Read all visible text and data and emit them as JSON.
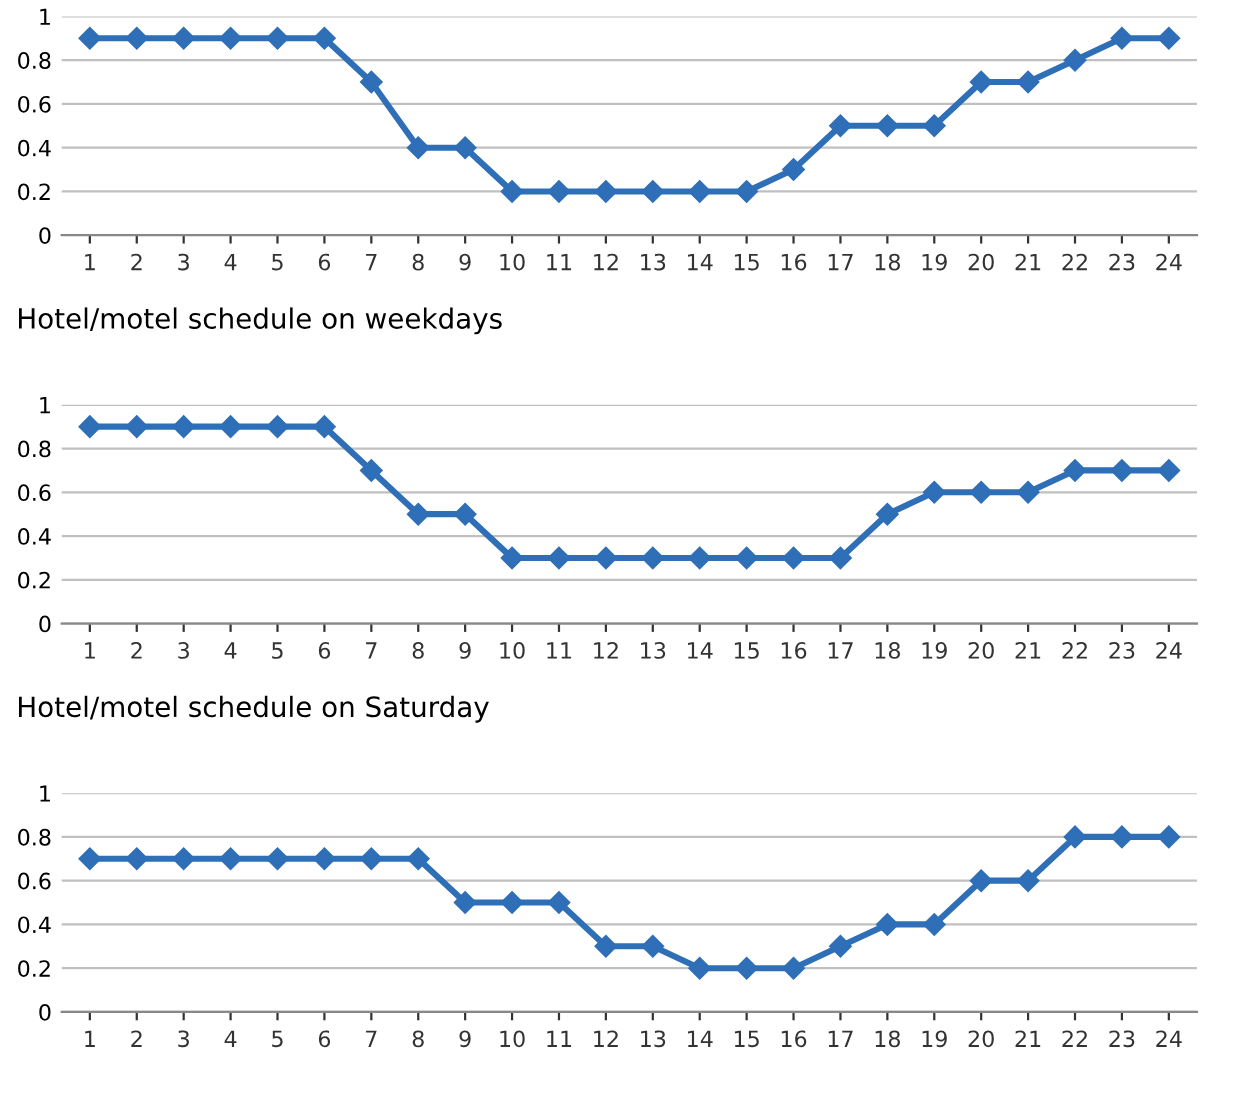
{
  "chart_data": [
    {
      "type": "line",
      "title": "Hotel/motel schedule on weekdays",
      "categories": [
        "1",
        "2",
        "3",
        "4",
        "5",
        "6",
        "7",
        "8",
        "9",
        "10",
        "11",
        "12",
        "13",
        "14",
        "15",
        "16",
        "17",
        "18",
        "19",
        "20",
        "21",
        "22",
        "23",
        "24"
      ],
      "series": [
        {
          "color": "#2e6fb7",
          "values": [
            0.9,
            0.9,
            0.9,
            0.9,
            0.9,
            0.9,
            0.7,
            0.4,
            0.4,
            0.2,
            0.2,
            0.2,
            0.2,
            0.2,
            0.2,
            0.3,
            0.5,
            0.5,
            0.5,
            0.7,
            0.7,
            0.8,
            0.9,
            0.9
          ]
        }
      ],
      "ylim": [
        0,
        1
      ],
      "yticks": [
        0,
        0.2,
        0.4,
        0.6,
        0.8,
        1
      ],
      "grid": "y",
      "marker": "diamond",
      "line_style": "solid",
      "legend": false
    },
    {
      "type": "line",
      "title": "Hotel/motel schedule on Saturday",
      "categories": [
        "1",
        "2",
        "3",
        "4",
        "5",
        "6",
        "7",
        "8",
        "9",
        "10",
        "11",
        "12",
        "13",
        "14",
        "15",
        "16",
        "17",
        "18",
        "19",
        "20",
        "21",
        "22",
        "23",
        "24"
      ],
      "series": [
        {
          "color": "#2e6fb7",
          "values": [
            0.9,
            0.9,
            0.9,
            0.9,
            0.9,
            0.9,
            0.7,
            0.5,
            0.5,
            0.3,
            0.3,
            0.3,
            0.3,
            0.3,
            0.3,
            0.3,
            0.3,
            0.5,
            0.6,
            0.6,
            0.6,
            0.7,
            0.7,
            0.7
          ]
        }
      ],
      "ylim": [
        0,
        1
      ],
      "yticks": [
        0,
        0.2,
        0.4,
        0.6,
        0.8,
        1
      ],
      "grid": "y",
      "marker": "diamond",
      "line_style": "solid",
      "legend": false
    },
    {
      "type": "line",
      "categories": [
        "1",
        "2",
        "3",
        "4",
        "5",
        "6",
        "7",
        "8",
        "9",
        "10",
        "11",
        "12",
        "13",
        "14",
        "15",
        "16",
        "17",
        "18",
        "19",
        "20",
        "21",
        "22",
        "23",
        "24"
      ],
      "series": [
        {
          "color": "#2e6fb7",
          "values": [
            0.7,
            0.7,
            0.7,
            0.7,
            0.7,
            0.7,
            0.7,
            0.7,
            0.5,
            0.5,
            0.5,
            0.3,
            0.3,
            0.2,
            0.2,
            0.2,
            0.3,
            0.4,
            0.4,
            0.6,
            0.6,
            0.8,
            0.8,
            0.8
          ]
        }
      ],
      "ylim": [
        0,
        1
      ],
      "yticks": [
        0,
        0.2,
        0.4,
        0.6,
        0.8,
        1
      ],
      "grid": "y",
      "marker": "diamond",
      "line_style": "solid",
      "legend": false
    }
  ]
}
